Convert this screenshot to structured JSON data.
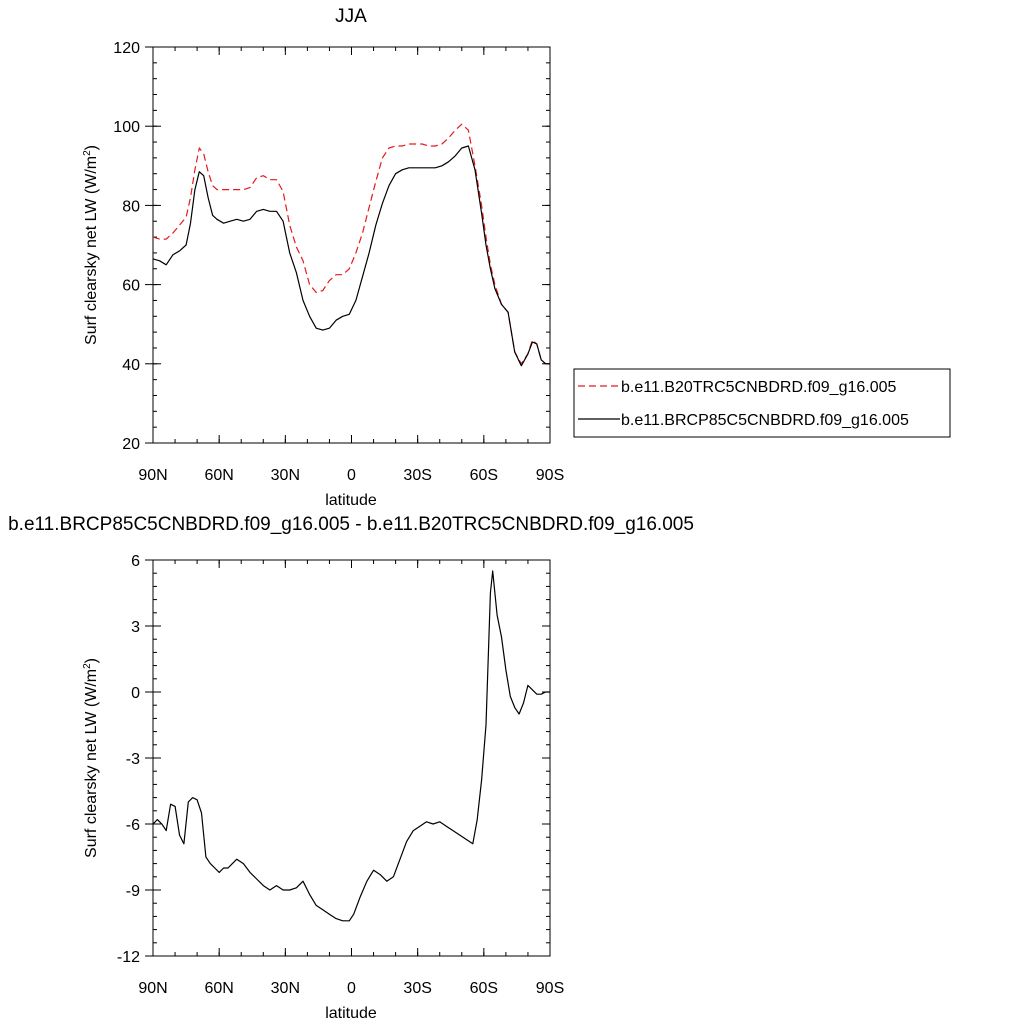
{
  "figure": {
    "title": "JJA",
    "diff_title": "b.e11.BRCP85C5CNBDRD.f09_g16.005 - b.e11.B20TRC5CNBDRD.f09_g16.005"
  },
  "chart_data": [
    {
      "type": "line",
      "title": "JJA",
      "xlabel": "latitude",
      "ylabel": "Surf clearsky net LW (W/m",
      "ylabel_sup": "2",
      "ylabel_close": ")",
      "xlim": [
        90,
        -90
      ],
      "ylim": [
        20,
        120
      ],
      "xticks": [
        90,
        60,
        30,
        0,
        -30,
        -60,
        -90
      ],
      "xticklabels": [
        "90N",
        "60N",
        "30N",
        "0",
        "30S",
        "60S",
        "90S"
      ],
      "yticks": [
        20,
        40,
        60,
        80,
        100,
        120
      ],
      "yticklabels": [
        "20",
        "40",
        "60",
        "80",
        "100",
        "120"
      ],
      "grid": false,
      "legend": "right",
      "series": [
        {
          "name": "b.e11.B20TRC5CNBDRD.f09_g16.005",
          "color": "#e41a1c",
          "dash": "dashed",
          "x": [
            90,
            87,
            84,
            81,
            78,
            75,
            73,
            71,
            69,
            67,
            65,
            63,
            61,
            58,
            55,
            52,
            49,
            46,
            43,
            40,
            37,
            34,
            31,
            28,
            25,
            22,
            19,
            16,
            13,
            10,
            7,
            4,
            1,
            -2,
            -5,
            -8,
            -11,
            -14,
            -17,
            -20,
            -23,
            -26,
            -29,
            -32,
            -35,
            -38,
            -41,
            -44,
            -47,
            -50,
            -53,
            -56,
            -59,
            -61,
            -63,
            -65,
            -68,
            -71,
            -74,
            -77,
            -80,
            -82,
            -84,
            -86,
            -88,
            -90
          ],
          "y": [
            72,
            71.5,
            71.5,
            73,
            75,
            77,
            82,
            89,
            94.5,
            93,
            88.5,
            85,
            84,
            84,
            84,
            84,
            84,
            84.5,
            87,
            87.5,
            86.5,
            86.5,
            83.5,
            75,
            69.5,
            66,
            60,
            58,
            58.5,
            61,
            62.5,
            62.5,
            64,
            68,
            73,
            79.5,
            86,
            92,
            94.5,
            95,
            95,
            95.5,
            95.5,
            95.5,
            95,
            95,
            95.5,
            97,
            99,
            100.5,
            99,
            90,
            80,
            72,
            65,
            60,
            55,
            53,
            43,
            40,
            42.5,
            46,
            45,
            41,
            40,
            40
          ]
        },
        {
          "name": "b.e11.BRCP85C5CNBDRD.f09_g16.005",
          "color": "#000000",
          "dash": "solid",
          "x": [
            90,
            87,
            84,
            81,
            78,
            75,
            73,
            71,
            69,
            67,
            65,
            63,
            61,
            58,
            55,
            52,
            49,
            46,
            43,
            40,
            37,
            34,
            31,
            28,
            25,
            22,
            19,
            16,
            13,
            10,
            7,
            4,
            1,
            -2,
            -5,
            -8,
            -11,
            -14,
            -17,
            -20,
            -23,
            -26,
            -29,
            -32,
            -35,
            -38,
            -41,
            -44,
            -47,
            -50,
            -53,
            -56,
            -59,
            -61,
            -63,
            -65,
            -68,
            -71,
            -74,
            -77,
            -80,
            -82,
            -84,
            -86,
            -88,
            -90
          ],
          "y": [
            66.5,
            66,
            65,
            67.5,
            68.5,
            70,
            75.5,
            84,
            88.5,
            87.5,
            82,
            77.5,
            76.5,
            75.5,
            76,
            76.5,
            76,
            76.5,
            78.5,
            79,
            78.5,
            78.5,
            76,
            68,
            63,
            56,
            52,
            49,
            48.5,
            49,
            51,
            52,
            52.5,
            56,
            62,
            68,
            75,
            80.5,
            85,
            88,
            89,
            89.5,
            89.5,
            89.5,
            89.5,
            89.5,
            90,
            91,
            92.5,
            94.5,
            95,
            89,
            78,
            70,
            64,
            59,
            55,
            53,
            43,
            39.5,
            42.5,
            45.5,
            45,
            41,
            40,
            40
          ]
        }
      ]
    },
    {
      "type": "line",
      "title": "b.e11.BRCP85C5CNBDRD.f09_g16.005 - b.e11.B20TRC5CNBDRD.f09_g16.005",
      "xlabel": "latitude",
      "ylabel": "Surf clearsky net LW (W/m",
      "ylabel_sup": "2",
      "ylabel_close": ")",
      "xlim": [
        90,
        -90
      ],
      "ylim": [
        -12,
        6
      ],
      "xticks": [
        90,
        60,
        30,
        0,
        -30,
        -60,
        -90
      ],
      "xticklabels": [
        "90N",
        "60N",
        "30N",
        "0",
        "30S",
        "60S",
        "90S"
      ],
      "yticks": [
        -12,
        -9,
        -6,
        -3,
        0,
        3,
        6
      ],
      "yticklabels": [
        "-12",
        "-9",
        "-6",
        "-3",
        "0",
        "3",
        "6"
      ],
      "grid": false,
      "series": [
        {
          "color": "#000000",
          "dash": "solid",
          "x": [
            90,
            88,
            86,
            84,
            82,
            80,
            78,
            76,
            74,
            72,
            70,
            68,
            66,
            64,
            62,
            60,
            58,
            56,
            54,
            52,
            49,
            46,
            43,
            40,
            37,
            34,
            31,
            28,
            25,
            22,
            19,
            16,
            13,
            10,
            7,
            4,
            1,
            -1,
            -4,
            -7,
            -10,
            -13,
            -16,
            -19,
            -22,
            -25,
            -28,
            -31,
            -34,
            -37,
            -40,
            -43,
            -46,
            -49,
            -52,
            -55,
            -57,
            -59,
            -61,
            -62,
            -63,
            -64,
            -66,
            -68,
            -70,
            -72,
            -74,
            -76,
            -78,
            -80,
            -82,
            -84,
            -86,
            -88,
            -90
          ],
          "y": [
            -6,
            -5.8,
            -6,
            -6.3,
            -5.1,
            -5.2,
            -6.5,
            -6.9,
            -5,
            -4.8,
            -4.9,
            -5.5,
            -7.5,
            -7.8,
            -8,
            -8.2,
            -8,
            -8,
            -7.8,
            -7.6,
            -7.8,
            -8.2,
            -8.5,
            -8.8,
            -9,
            -8.8,
            -9,
            -9,
            -8.9,
            -8.6,
            -9.2,
            -9.7,
            -9.9,
            -10.1,
            -10.3,
            -10.4,
            -10.4,
            -10.1,
            -9.3,
            -8.6,
            -8.1,
            -8.3,
            -8.6,
            -8.4,
            -7.6,
            -6.8,
            -6.3,
            -6.1,
            -5.9,
            -6,
            -5.9,
            -6.1,
            -6.3,
            -6.5,
            -6.7,
            -6.9,
            -5.8,
            -4,
            -1.5,
            1.5,
            4.5,
            5.5,
            3.5,
            2.5,
            1,
            -0.2,
            -0.7,
            -1,
            -0.5,
            0.3,
            0.1,
            -0.1,
            -0.1,
            0,
            0
          ]
        }
      ]
    }
  ]
}
